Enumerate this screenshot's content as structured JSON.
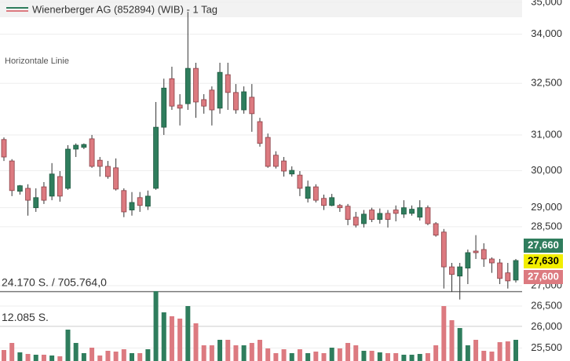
{
  "chart_data": {
    "type": "candlestick",
    "title": "Wienerberger AG (852894) (WIB) - 1 Tag",
    "log_scale": true,
    "grid": true,
    "up_color": "#2f7d5d",
    "down_color": "#dc7a80",
    "ylim": [
      25200,
      35080
    ],
    "yticks": [
      {
        "value": 35000,
        "label": "35,000"
      },
      {
        "value": 34000,
        "label": "34,000"
      },
      {
        "value": 32500,
        "label": "32,500"
      },
      {
        "value": 31000,
        "label": "31,000"
      },
      {
        "value": 30000,
        "label": "30,000"
      },
      {
        "value": 29000,
        "label": "29,000"
      },
      {
        "value": 28500,
        "label": "28,500"
      },
      {
        "value": 27000,
        "label": "27,000"
      },
      {
        "value": 26500,
        "label": "26,500"
      },
      {
        "value": 26000,
        "label": "26,000"
      },
      {
        "value": 25500,
        "label": "25,500"
      }
    ],
    "horizontal_line": {
      "label": "Horizontale Linie",
      "value": 26850
    },
    "price_labels": [
      {
        "value": 27660,
        "label": "27,660",
        "color": "#2f7d5d",
        "text_color": "#ffffff"
      },
      {
        "value": 27630,
        "label": "27,630",
        "color": "#f2ee00",
        "text_color": "#000000"
      },
      {
        "value": 27600,
        "label": "27,600",
        "color": "#dc7a80",
        "text_color": "#ffffff"
      }
    ],
    "open": [
      30870,
      30270,
      29440,
      29520,
      29000,
      29560,
      29310,
      29840,
      29520,
      30600,
      30650,
      30890,
      30290,
      30120,
      30080,
      29460,
      28940,
      29270,
      29040,
      29520,
      31220,
      32640,
      31860,
      31900,
      32950,
      32020,
      32300,
      31770,
      32760,
      32230,
      31720,
      32090,
      31380,
      30930,
      30430,
      30270,
      29910,
      29880,
      29250,
      29560,
      29250,
      29060,
      29060,
      29040,
      28750,
      28580,
      28940,
      28690,
      28850,
      28940,
      28830,
      28850,
      28750,
      29000,
      28580,
      28360,
      27470,
      27240,
      27440,
      27870,
      27910,
      27670,
      27570,
      27320,
      27140
    ],
    "high": [
      30930,
      30320,
      29610,
      29630,
      29520,
      29690,
      30210,
      29990,
      30710,
      30760,
      30760,
      31000,
      30380,
      30270,
      30340,
      29520,
      29420,
      29420,
      29460,
      31950,
      32640,
      33000,
      32180,
      34700,
      33120,
      32180,
      32410,
      33120,
      33120,
      32480,
      32410,
      32480,
      31490,
      31040,
      30540,
      30380,
      30120,
      29990,
      29730,
      29630,
      29350,
      29370,
      29100,
      29100,
      28890,
      28940,
      29000,
      28980,
      28940,
      29060,
      29200,
      29060,
      29200,
      29060,
      28620,
      28440,
      27570,
      27570,
      27910,
      28280,
      28070,
      27710,
      27670,
      27570,
      27670
    ],
    "low": [
      30270,
      29310,
      29350,
      28790,
      28890,
      29100,
      29200,
      29160,
      29480,
      30380,
      30600,
      30080,
      29840,
      29780,
      29460,
      28750,
      28790,
      28890,
      28940,
      29480,
      31000,
      31720,
      31270,
      31720,
      31490,
      31610,
      31270,
      31610,
      31720,
      31610,
      31610,
      31090,
      30670,
      30080,
      30060,
      29840,
      29840,
      29310,
      29140,
      29140,
      28940,
      29040,
      28890,
      28540,
      28480,
      28480,
      28620,
      28580,
      28480,
      28640,
      28730,
      28790,
      28660,
      28540,
      28240,
      26930,
      26850,
      26660,
      27040,
      27670,
      27470,
      27320,
      27040,
      26930,
      27080
    ],
    "close": [
      30380,
      29460,
      29590,
      29200,
      29270,
      29200,
      29910,
      29310,
      30600,
      30710,
      30730,
      30120,
      30120,
      29840,
      29500,
      28890,
      29140,
      29060,
      29310,
      31220,
      32360,
      31830,
      31770,
      32950,
      31950,
      31830,
      31720,
      32830,
      32230,
      31720,
      32250,
      31610,
      30760,
      30120,
      30120,
      29990,
      30010,
      29520,
      29560,
      29200,
      29060,
      29270,
      29000,
      28690,
      28540,
      28830,
      28690,
      28850,
      28690,
      28850,
      29000,
      28960,
      29000,
      28580,
      28280,
      27470,
      27280,
      27470,
      27830,
      27830,
      27670,
      27570,
      27180,
      27120,
      27630
    ],
    "volume": [
      3800,
      6250,
      2990,
      2440,
      2170,
      2170,
      1900,
      1630,
      10860,
      6250,
      2720,
      4620,
      1900,
      3530,
      3260,
      4070,
      2720,
      2720,
      4070,
      24170,
      16840,
      15480,
      14670,
      19010,
      13040,
      5430,
      5430,
      7330,
      7330,
      5430,
      5430,
      6250,
      7330,
      4350,
      2720,
      4070,
      2720,
      4070,
      2720,
      3260,
      2720,
      4620,
      4350,
      6250,
      5430,
      3530,
      3530,
      2990,
      2720,
      2720,
      2170,
      2170,
      2440,
      2720,
      5430,
      19010,
      14120,
      11410,
      5430,
      7330,
      3530,
      3260,
      6520,
      6790,
      7330
    ],
    "volume_ylim": [
      0,
      24170
    ],
    "volume_ticks": [
      {
        "value": 24170,
        "label": "24.170 S. / 705.764,0"
      },
      {
        "value": 12085,
        "label": "12.085 S."
      }
    ]
  }
}
